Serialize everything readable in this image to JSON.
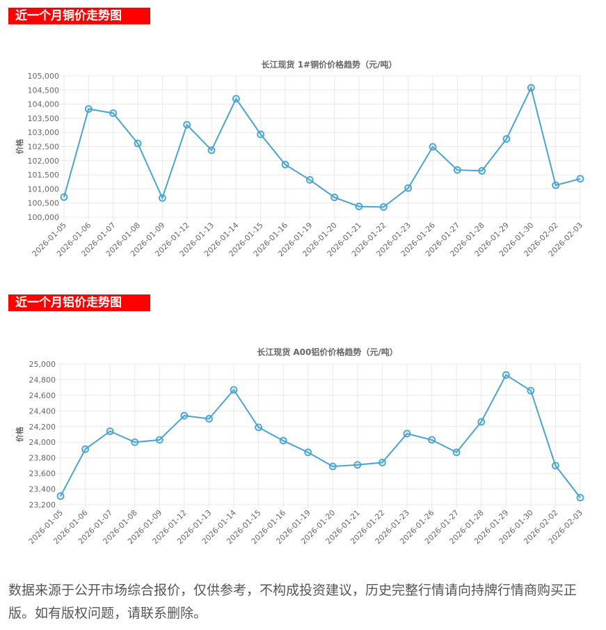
{
  "sections": [
    {
      "heading": "近一个月铜价走势图"
    },
    {
      "heading": "近一个月铝价走势图"
    }
  ],
  "footer": {
    "note": "数据来源于公开市场综合报价，仅供参考，不构成投资建议，历史完整行情请向持牌行情商购买正版。如有版权问题，请联系删除。"
  },
  "colors": {
    "heading_bg": "#ff0000",
    "line": "#4aa3cf",
    "grid": "#e8e8e8"
  },
  "chart_data": [
    {
      "type": "line",
      "title": "长江现货 1#铜价价格趋势（元/吨）",
      "xlabel": "",
      "ylabel": "价格",
      "ylim": [
        100000,
        105000
      ],
      "ytick_step": 500,
      "grid": true,
      "categories": [
        "2026-01-05",
        "2026-01-06",
        "2026-01-07",
        "2026-01-08",
        "2026-01-09",
        "2026-01-12",
        "2026-01-13",
        "2026-01-14",
        "2026-01-15",
        "2026-01-16",
        "2026-01-19",
        "2026-01-20",
        "2026-01-21",
        "2026-01-22",
        "2026-01-23",
        "2026-01-26",
        "2026-01-27",
        "2026-01-28",
        "2026-01-29",
        "2026-01-30",
        "2026-02-02",
        "2026-02-03"
      ],
      "values": [
        100710,
        103830,
        103680,
        102610,
        100680,
        103270,
        102370,
        104190,
        102930,
        101860,
        101320,
        100700,
        100380,
        100360,
        101030,
        102490,
        101670,
        101640,
        102770,
        104580,
        101130,
        101360
      ]
    },
    {
      "type": "line",
      "title": "长江现货 A00铝价价格趋势（元/吨）",
      "xlabel": "",
      "ylabel": "价格",
      "ylim": [
        23200,
        25000
      ],
      "ytick_step": 200,
      "grid": true,
      "categories": [
        "2026-01-05",
        "2026-01-06",
        "2026-01-07",
        "2026-01-08",
        "2026-01-09",
        "2026-01-12",
        "2026-01-13",
        "2026-01-14",
        "2026-01-15",
        "2026-01-16",
        "2026-01-19",
        "2026-01-20",
        "2026-01-21",
        "2026-01-22",
        "2026-01-23",
        "2026-01-26",
        "2026-01-27",
        "2026-01-28",
        "2026-01-29",
        "2026-01-30",
        "2026-02-02",
        "2026-02-03"
      ],
      "values": [
        23310,
        23910,
        24140,
        24000,
        24030,
        24340,
        24300,
        24670,
        24190,
        24020,
        23870,
        23690,
        23710,
        23740,
        24110,
        24030,
        23870,
        24260,
        24860,
        24660,
        23700,
        23290
      ]
    }
  ]
}
